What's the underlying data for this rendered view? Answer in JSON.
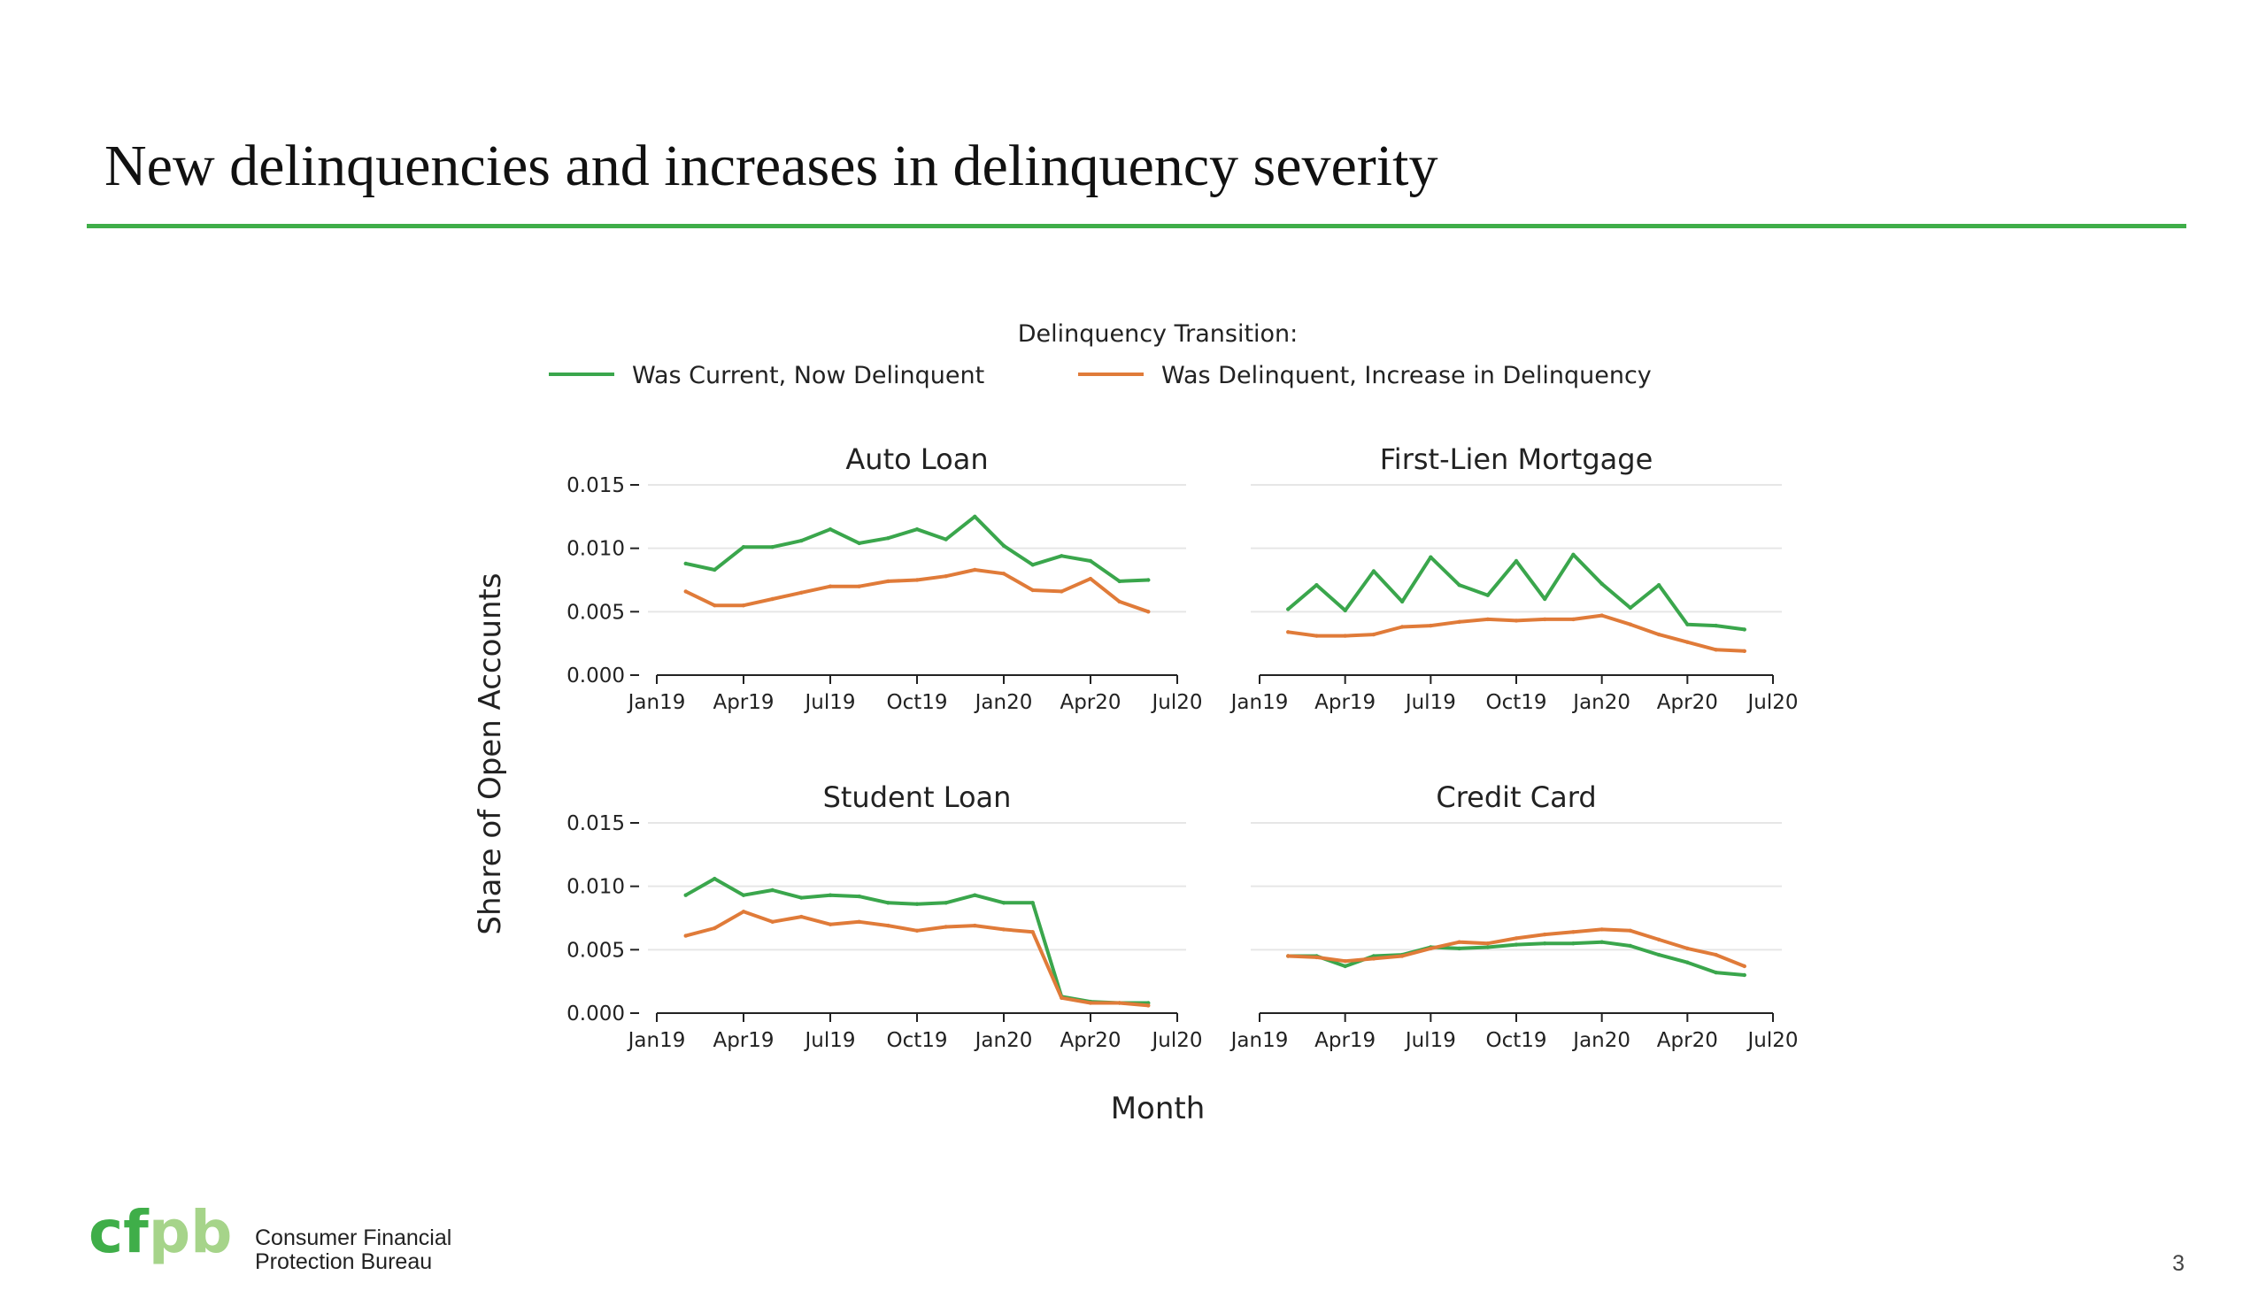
{
  "slide": {
    "title": "New delinquencies and increases in delinquency severity",
    "page_number": "3",
    "accent_color": "#3fae49"
  },
  "logo": {
    "mark": "cfpb",
    "line1": "Consumer Financial",
    "line2": "Protection Bureau",
    "colors": {
      "dark_green": "#3fae49",
      "light_green": "#a6d48a"
    }
  },
  "chart_data": {
    "type": "line",
    "legend": {
      "title": "Delinquency Transition:",
      "position": "top-center",
      "entries": [
        {
          "name": "Was Current, Now Delinquent",
          "color": "#3aa64c"
        },
        {
          "name": "Was Delinquent, Increase in Delinquency",
          "color": "#e07b39"
        }
      ]
    },
    "xlabel": "Month",
    "ylabel": "Share of Open Accounts",
    "x_ticks": [
      "Jan19",
      "Apr19",
      "Jul19",
      "Oct19",
      "Jan20",
      "Apr20",
      "Jul20"
    ],
    "y_ticks": [
      "0.000",
      "0.005",
      "0.010",
      "0.015"
    ],
    "ylim": [
      0,
      0.015
    ],
    "xlim": [
      "2019-01",
      "2020-07"
    ],
    "grid": "horizontal",
    "x": [
      "2019-02",
      "2019-03",
      "2019-04",
      "2019-05",
      "2019-06",
      "2019-07",
      "2019-08",
      "2019-09",
      "2019-10",
      "2019-11",
      "2019-12",
      "2020-01",
      "2020-02",
      "2020-03",
      "2020-04",
      "2020-05",
      "2020-06"
    ],
    "panels": [
      {
        "title": "Auto Loan",
        "series": [
          {
            "name": "Was Current, Now Delinquent",
            "values": [
              0.0088,
              0.0083,
              0.0101,
              0.0101,
              0.0106,
              0.0115,
              0.0104,
              0.0108,
              0.0115,
              0.0107,
              0.0125,
              0.0102,
              0.0087,
              0.0094,
              0.009,
              0.0074,
              0.0075
            ]
          },
          {
            "name": "Was Delinquent, Increase in Delinquency",
            "values": [
              0.0066,
              0.0055,
              0.0055,
              0.006,
              0.0065,
              0.007,
              0.007,
              0.0074,
              0.0075,
              0.0078,
              0.0083,
              0.008,
              0.0067,
              0.0066,
              0.0076,
              0.0058,
              0.005
            ]
          }
        ]
      },
      {
        "title": "First-Lien Mortgage",
        "series": [
          {
            "name": "Was Current, Now Delinquent",
            "values": [
              0.0052,
              0.0071,
              0.0051,
              0.0082,
              0.0058,
              0.0093,
              0.0071,
              0.0063,
              0.009,
              0.006,
              0.0095,
              0.0072,
              0.0053,
              0.0071,
              0.004,
              0.0039,
              0.0036
            ]
          },
          {
            "name": "Was Delinquent, Increase in Delinquency",
            "values": [
              0.0034,
              0.0031,
              0.0031,
              0.0032,
              0.0038,
              0.0039,
              0.0042,
              0.0044,
              0.0043,
              0.0044,
              0.0044,
              0.0047,
              0.004,
              0.0032,
              0.0026,
              0.002,
              0.0019
            ]
          }
        ]
      },
      {
        "title": "Student Loan",
        "series": [
          {
            "name": "Was Current, Now Delinquent",
            "values": [
              0.0093,
              0.0106,
              0.0093,
              0.0097,
              0.0091,
              0.0093,
              0.0092,
              0.0087,
              0.0086,
              0.0087,
              0.0093,
              0.0087,
              0.0087,
              0.0013,
              0.0009,
              0.0008,
              0.0008
            ]
          },
          {
            "name": "Was Delinquent, Increase in Delinquency",
            "values": [
              0.0061,
              0.0067,
              0.008,
              0.0072,
              0.0076,
              0.007,
              0.0072,
              0.0069,
              0.0065,
              0.0068,
              0.0069,
              0.0066,
              0.0064,
              0.0012,
              0.0008,
              0.0008,
              0.0006
            ]
          }
        ]
      },
      {
        "title": "Credit Card",
        "series": [
          {
            "name": "Was Current, Now Delinquent",
            "values": [
              0.0045,
              0.0045,
              0.0037,
              0.0045,
              0.0046,
              0.0052,
              0.0051,
              0.0052,
              0.0054,
              0.0055,
              0.0055,
              0.0056,
              0.0053,
              0.0046,
              0.004,
              0.0032,
              0.003
            ]
          },
          {
            "name": "Was Delinquent, Increase in Delinquency",
            "values": [
              0.0045,
              0.0044,
              0.0041,
              0.0043,
              0.0045,
              0.0051,
              0.0056,
              0.0055,
              0.0059,
              0.0062,
              0.0064,
              0.0066,
              0.0065,
              0.0058,
              0.0051,
              0.0046,
              0.0037
            ]
          }
        ]
      }
    ]
  }
}
